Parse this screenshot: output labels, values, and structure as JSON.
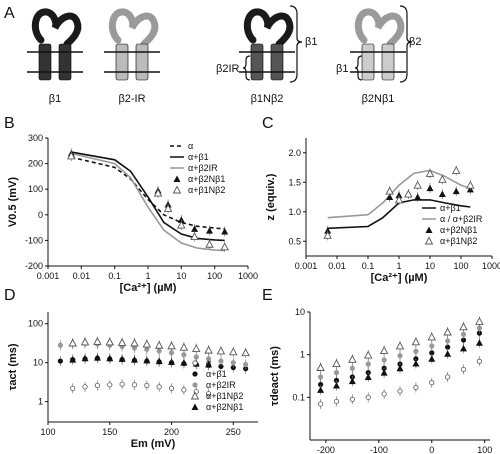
{
  "panels": {
    "A": "A",
    "B": "B",
    "C": "C",
    "D": "D",
    "E": "E"
  },
  "schematic": {
    "labels": [
      "β1",
      "β2-IR",
      "β1Nβ2",
      "β2Nβ1"
    ],
    "brace_beta1": "β1",
    "brace_beta2": "β2",
    "brace_beta2IR": "β2IR",
    "brace_beta1_small": "β1",
    "colors": {
      "beta1": "#1a1a1a",
      "beta2": "#9a9a9a"
    }
  },
  "chart_data": [
    {
      "panel": "B",
      "type": "line",
      "xlabel": "[Ca²⁺] (µM)",
      "ylabel": "V0.5 (mV)",
      "xscale": "log",
      "xlim": [
        0.001,
        1000
      ],
      "ylim": [
        -200,
        300
      ],
      "xticks": [
        "0.001",
        "0.01",
        "0.1",
        "1",
        "10",
        "100",
        "1000"
      ],
      "yticks": [
        "300",
        "200",
        "100",
        "0",
        "-100",
        "-200"
      ],
      "legend_position": "top-right",
      "legend": [
        "α",
        "α+β1",
        "α+β2IR",
        "α+β2Nβ1",
        "α+β1Nβ2"
      ],
      "series": [
        {
          "name": "α",
          "style": "dashed",
          "x": [
            0.005,
            0.1,
            0.3,
            1,
            3,
            10,
            30,
            100,
            200
          ],
          "y": [
            225,
            185,
            140,
            60,
            0,
            -30,
            -45,
            -52,
            -55
          ]
        },
        {
          "name": "α+β1",
          "style": "solid-black",
          "x": [
            0.005,
            0.1,
            0.3,
            1,
            3,
            10,
            30,
            100,
            200
          ],
          "y": [
            245,
            215,
            170,
            70,
            -30,
            -75,
            -92,
            -98,
            -100
          ]
        },
        {
          "name": "α+β2IR",
          "style": "solid-gray",
          "x": [
            0.005,
            0.1,
            0.3,
            1,
            3,
            10,
            30,
            100,
            200
          ],
          "y": [
            240,
            200,
            145,
            30,
            -60,
            -110,
            -130,
            -138,
            -140
          ]
        },
        {
          "name": "α+β2Nβ1",
          "marker": "filled-triangle",
          "x": [
            0.005,
            2,
            4,
            10,
            25,
            70,
            200
          ],
          "y": [
            240,
            95,
            40,
            -20,
            -55,
            -62,
            -65
          ]
        },
        {
          "name": "α+β1Nβ2",
          "marker": "open-triangle",
          "x": [
            0.005,
            2,
            4,
            10,
            25,
            70,
            200
          ],
          "y": [
            230,
            85,
            25,
            -40,
            -85,
            -115,
            -125
          ]
        }
      ]
    },
    {
      "panel": "C",
      "type": "line",
      "xlabel": "[Ca²⁺] (µM)",
      "ylabel": "z (equiv.)",
      "xscale": "log",
      "xlim": [
        0.001,
        1000
      ],
      "ylim": [
        0.25,
        2.25
      ],
      "xticks": [
        "0.001",
        "0.01",
        "0.1",
        "1",
        "10",
        "100",
        "1000"
      ],
      "yticks": [
        "2.0",
        "1.5",
        "1.0",
        "0.5"
      ],
      "legend_position": "bottom-right",
      "legend": [
        "α+β1",
        "α / α+β2IR",
        "α+β2Nβ1",
        "α+β1Nβ2"
      ],
      "series": [
        {
          "name": "α+β1",
          "style": "solid-black",
          "x": [
            0.005,
            0.1,
            0.3,
            1,
            3,
            10,
            30,
            100,
            200
          ],
          "y": [
            0.72,
            0.75,
            0.9,
            1.15,
            1.2,
            1.2,
            1.15,
            1.1,
            1.08
          ]
        },
        {
          "name": "α / α+β2IR",
          "style": "solid-gray",
          "x": [
            0.005,
            0.1,
            0.3,
            1,
            3,
            10,
            30,
            100,
            200
          ],
          "y": [
            0.9,
            0.95,
            1.15,
            1.45,
            1.65,
            1.7,
            1.6,
            1.45,
            1.4
          ]
        },
        {
          "name": "α+β2Nβ1",
          "marker": "filled-triangle",
          "x": [
            0.005,
            0.5,
            1,
            2,
            4,
            10,
            25,
            70,
            200
          ],
          "y": [
            0.68,
            1.25,
            1.28,
            1.3,
            1.25,
            1.4,
            1.3,
            1.35,
            1.38
          ]
        },
        {
          "name": "α+β1Nβ2",
          "marker": "open-triangle",
          "x": [
            0.005,
            0.5,
            1,
            2,
            4,
            10,
            25,
            70,
            200
          ],
          "y": [
            0.6,
            1.35,
            1.2,
            1.3,
            1.45,
            1.65,
            1.55,
            1.7,
            1.45
          ]
        }
      ]
    },
    {
      "panel": "D",
      "type": "scatter",
      "xlabel": "Em (mV)",
      "ylabel": "τact (ms)",
      "xscale": "linear",
      "yscale": "log",
      "xlim": [
        100,
        270
      ],
      "ylim": [
        0.3,
        200
      ],
      "xticks": [
        "100",
        "150",
        "200",
        "250"
      ],
      "yticks": [
        "100",
        "10",
        "1"
      ],
      "legend_position": "bottom-right",
      "legend": [
        "α",
        "α+β1",
        "α+β2IR",
        "α+β1Nβ2",
        "α+β2Nβ1"
      ],
      "series": [
        {
          "name": "α",
          "marker": "open-circle",
          "x": [
            120,
            130,
            140,
            150,
            160,
            170,
            180,
            190,
            200,
            210,
            220,
            230
          ],
          "y": [
            2.2,
            2.4,
            2.6,
            2.7,
            2.8,
            2.7,
            2.6,
            2.4,
            2.2,
            2.0,
            1.8,
            1.6
          ]
        },
        {
          "name": "α+β1",
          "marker": "filled-circle",
          "x": [
            110,
            120,
            130,
            140,
            150,
            160,
            170,
            180,
            190,
            200,
            210,
            220,
            230,
            240,
            250,
            260
          ],
          "y": [
            11,
            12,
            12.5,
            13,
            12.5,
            12,
            11.5,
            11,
            10.5,
            10,
            9.5,
            9,
            8.5,
            8,
            7.5,
            7
          ]
        },
        {
          "name": "α+β2IR",
          "marker": "gray-circle",
          "x": [
            110,
            120,
            130,
            140,
            150,
            160,
            170,
            180,
            190,
            200,
            210,
            220,
            230,
            240,
            250,
            260
          ],
          "y": [
            28,
            30,
            31,
            30,
            28,
            26,
            24,
            22,
            20,
            18,
            16,
            14,
            12.5,
            11,
            10,
            9
          ]
        },
        {
          "name": "α+β1Nβ2",
          "marker": "open-triangle",
          "x": [
            120,
            130,
            140,
            150,
            160,
            170,
            180,
            190,
            200,
            210,
            220,
            230,
            240,
            250,
            260
          ],
          "y": [
            32,
            34,
            35,
            34,
            33,
            32,
            30,
            28,
            27,
            25,
            23,
            21,
            20,
            19,
            18
          ]
        },
        {
          "name": "α+β2Nβ1",
          "marker": "filled-triangle",
          "x": [
            120,
            130,
            140,
            150,
            160,
            170,
            180,
            190,
            200,
            210,
            220,
            230
          ],
          "y": [
            12,
            13,
            13.5,
            13,
            12.5,
            12,
            11.5,
            11,
            10.5,
            10,
            9.5,
            9
          ]
        }
      ]
    },
    {
      "panel": "E",
      "type": "scatter",
      "xlabel": "Em (mV)",
      "ylabel": "τdeact (ms)",
      "xscale": "linear",
      "yscale": "log",
      "xlim": [
        -230,
        110
      ],
      "ylim": [
        0.01,
        10
      ],
      "xticks": [
        "-200",
        "-100",
        "0",
        "100"
      ],
      "yticks": [
        "10",
        "1",
        "0.1"
      ],
      "series": [
        {
          "name": "α",
          "marker": "open-circle",
          "x": [
            -210,
            -180,
            -150,
            -120,
            -90,
            -60,
            -30,
            0,
            30,
            60,
            90
          ],
          "y": [
            0.07,
            0.08,
            0.09,
            0.1,
            0.12,
            0.14,
            0.17,
            0.22,
            0.3,
            0.45,
            0.7
          ]
        },
        {
          "name": "α+β1",
          "marker": "filled-circle",
          "x": [
            -210,
            -180,
            -150,
            -120,
            -90,
            -60,
            -30,
            0,
            30,
            60,
            90
          ],
          "y": [
            0.2,
            0.25,
            0.3,
            0.38,
            0.48,
            0.6,
            0.8,
            1.1,
            1.5,
            2.2,
            3.2
          ]
        },
        {
          "name": "α+β2IR",
          "marker": "gray-circle",
          "x": [
            -210,
            -180,
            -150,
            -120,
            -90,
            -60,
            -30,
            0,
            30,
            60,
            90
          ],
          "y": [
            0.3,
            0.38,
            0.48,
            0.6,
            0.75,
            0.95,
            1.2,
            1.6,
            2.1,
            3.0,
            4.2
          ]
        },
        {
          "name": "α+β1Nβ2",
          "marker": "open-triangle",
          "x": [
            -210,
            -180,
            -150,
            -120,
            -90,
            -60,
            -30,
            0,
            30,
            60,
            90
          ],
          "y": [
            0.5,
            0.62,
            0.78,
            0.98,
            1.25,
            1.6,
            2.0,
            2.6,
            3.4,
            4.5,
            6.0
          ]
        },
        {
          "name": "α+β2Nβ1",
          "marker": "filled-triangle",
          "x": [
            -210,
            -180,
            -150,
            -120,
            -90,
            -60,
            -30,
            0,
            30,
            60,
            90
          ],
          "y": [
            0.15,
            0.19,
            0.24,
            0.3,
            0.38,
            0.48,
            0.62,
            0.8,
            1.05,
            1.4,
            1.9
          ]
        }
      ]
    }
  ]
}
